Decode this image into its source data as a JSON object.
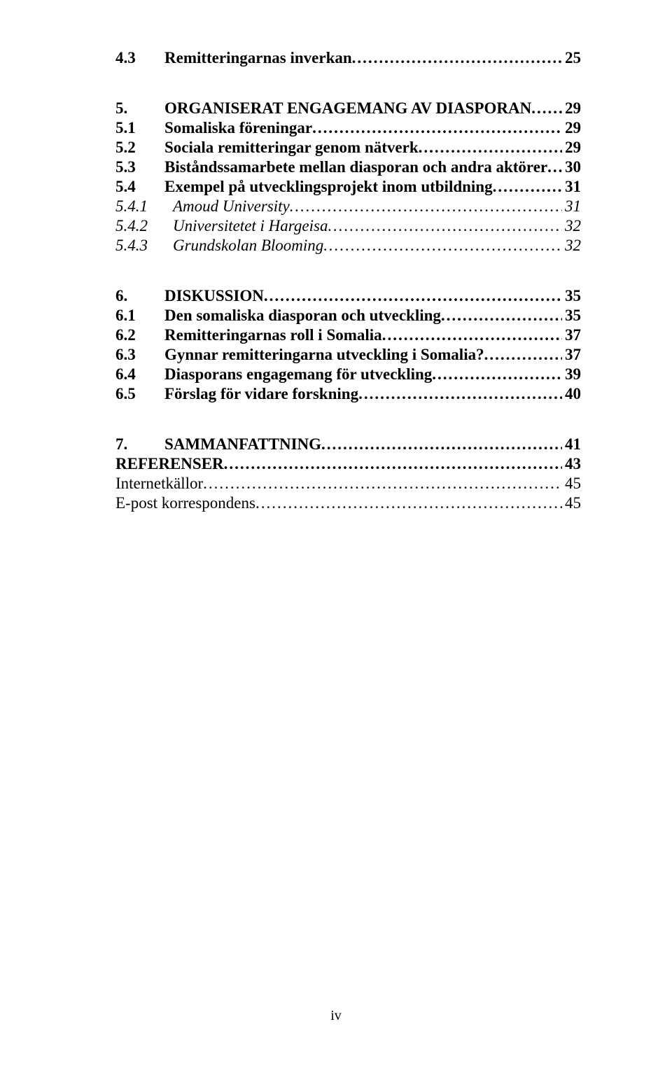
{
  "toc": [
    {
      "style": "level2 first",
      "num": "4.3",
      "title": "Remitteringarnas inverkan",
      "page": "25",
      "numClass": "num-col"
    },
    {
      "style": "level1",
      "num": "5.",
      "title": "ORGANISERAT ENGAGEMANG AV DIASPORAN",
      "page": "29",
      "numClass": "num-col"
    },
    {
      "style": "level2",
      "num": "5.1",
      "title": "Somaliska föreningar",
      "page": "29",
      "numClass": "num-col"
    },
    {
      "style": "level2",
      "num": "5.2",
      "title": "Sociala remitteringar genom nätverk",
      "page": "29",
      "numClass": "num-col"
    },
    {
      "style": "level2",
      "num": "5.3",
      "title": "Biståndssamarbete mellan diasporan och andra aktörer",
      "page": "30",
      "numClass": "num-col"
    },
    {
      "style": "level2",
      "num": "5.4",
      "title": "Exempel på utvecklingsprojekt inom utbildning",
      "page": "31",
      "numClass": "num-col"
    },
    {
      "style": "level3",
      "num": "5.4.1",
      "title": "Amoud University",
      "page": "31",
      "numClass": "num-col-w"
    },
    {
      "style": "level3",
      "num": "5.4.2",
      "title": "Universitetet i Hargeisa",
      "page": "32",
      "numClass": "num-col-w"
    },
    {
      "style": "level3",
      "num": "5.4.3",
      "title": "Grundskolan Blooming",
      "page": "32",
      "numClass": "num-col-w"
    },
    {
      "style": "level1",
      "num": "6.",
      "title": "DISKUSSION",
      "page": "35",
      "numClass": "num-col"
    },
    {
      "style": "level2",
      "num": "6.1",
      "title": "Den somaliska diasporan och utveckling",
      "page": "35",
      "numClass": "num-col"
    },
    {
      "style": "level2",
      "num": "6.2",
      "title": "Remitteringarnas roll i Somalia",
      "page": "37",
      "numClass": "num-col"
    },
    {
      "style": "level2",
      "num": "6.3",
      "title": "Gynnar remitteringarna utveckling i Somalia?",
      "page": "37",
      "numClass": "num-col"
    },
    {
      "style": "level2",
      "num": "6.4",
      "title": "Diasporans engagemang för utveckling",
      "page": "39",
      "numClass": "num-col"
    },
    {
      "style": "level2",
      "num": "6.5",
      "title": "Förslag för vidare forskning",
      "page": "40",
      "numClass": "num-col"
    },
    {
      "style": "level1",
      "num": "7.",
      "title": "SAMMANFATTNING",
      "page": "41",
      "numClass": "num-col"
    }
  ],
  "refs": [
    {
      "style": "level1",
      "title": "REFERENSER",
      "page": "43"
    },
    {
      "style": "level2",
      "title": "Internetkällor",
      "page": "45",
      "weight": "normal"
    },
    {
      "style": "level2",
      "title": "E-post korrespondens",
      "page": "45",
      "weight": "normal"
    }
  ],
  "pageNumber": "iv",
  "colors": {
    "background": "#ffffff",
    "text": "#000000"
  },
  "typography": {
    "fontFamily": "Garamond, Times New Roman, serif",
    "baseSize": 23
  }
}
